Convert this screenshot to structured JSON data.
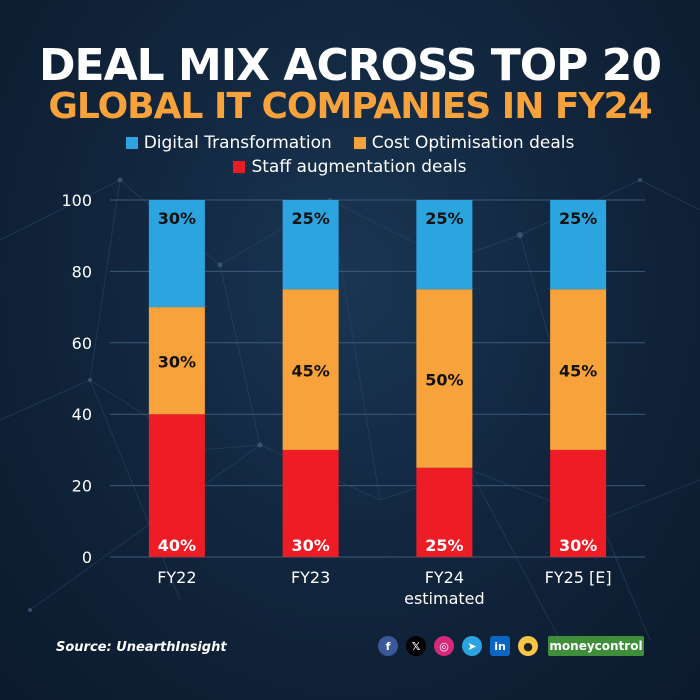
{
  "title_line1": "DEAL MIX ACROSS TOP 20",
  "title_line2": "GLOBAL IT COMPANIES IN FY24",
  "source": "Source: UnearthInsight",
  "brand": "moneycontrol",
  "icons": [
    "facebook-icon",
    "x-icon",
    "instagram-icon",
    "telegram-icon",
    "linkedin-icon",
    "koo-icon"
  ],
  "colors": {
    "digital": "#2ba4e0",
    "cost": "#f7a23b",
    "staff": "#ee1c25",
    "title_accent": "#f7a23b"
  },
  "chart_data": {
    "type": "bar",
    "stacked": true,
    "categories": [
      "FY22",
      "FY23",
      "FY24\nestimated",
      "FY25 [E]"
    ],
    "series": [
      {
        "name": "Staff augmentation deals",
        "values": [
          40,
          30,
          25,
          30
        ],
        "labels": [
          "40%",
          "30%",
          "25%",
          "30%"
        ]
      },
      {
        "name": "Cost Optimisation deals",
        "values": [
          30,
          45,
          50,
          45
        ],
        "labels": [
          "30%",
          "45%",
          "50%",
          "45%"
        ]
      },
      {
        "name": "Digital Transformation",
        "values": [
          30,
          25,
          25,
          25
        ],
        "labels": [
          "30%",
          "25%",
          "25%",
          "25%"
        ]
      }
    ],
    "yticks": [
      0,
      20,
      40,
      60,
      80,
      100
    ],
    "ylim": [
      0,
      100
    ],
    "grid": true,
    "legend": [
      "Digital Transformation",
      "Cost Optimisation deals",
      "Staff augmentation deals"
    ]
  }
}
